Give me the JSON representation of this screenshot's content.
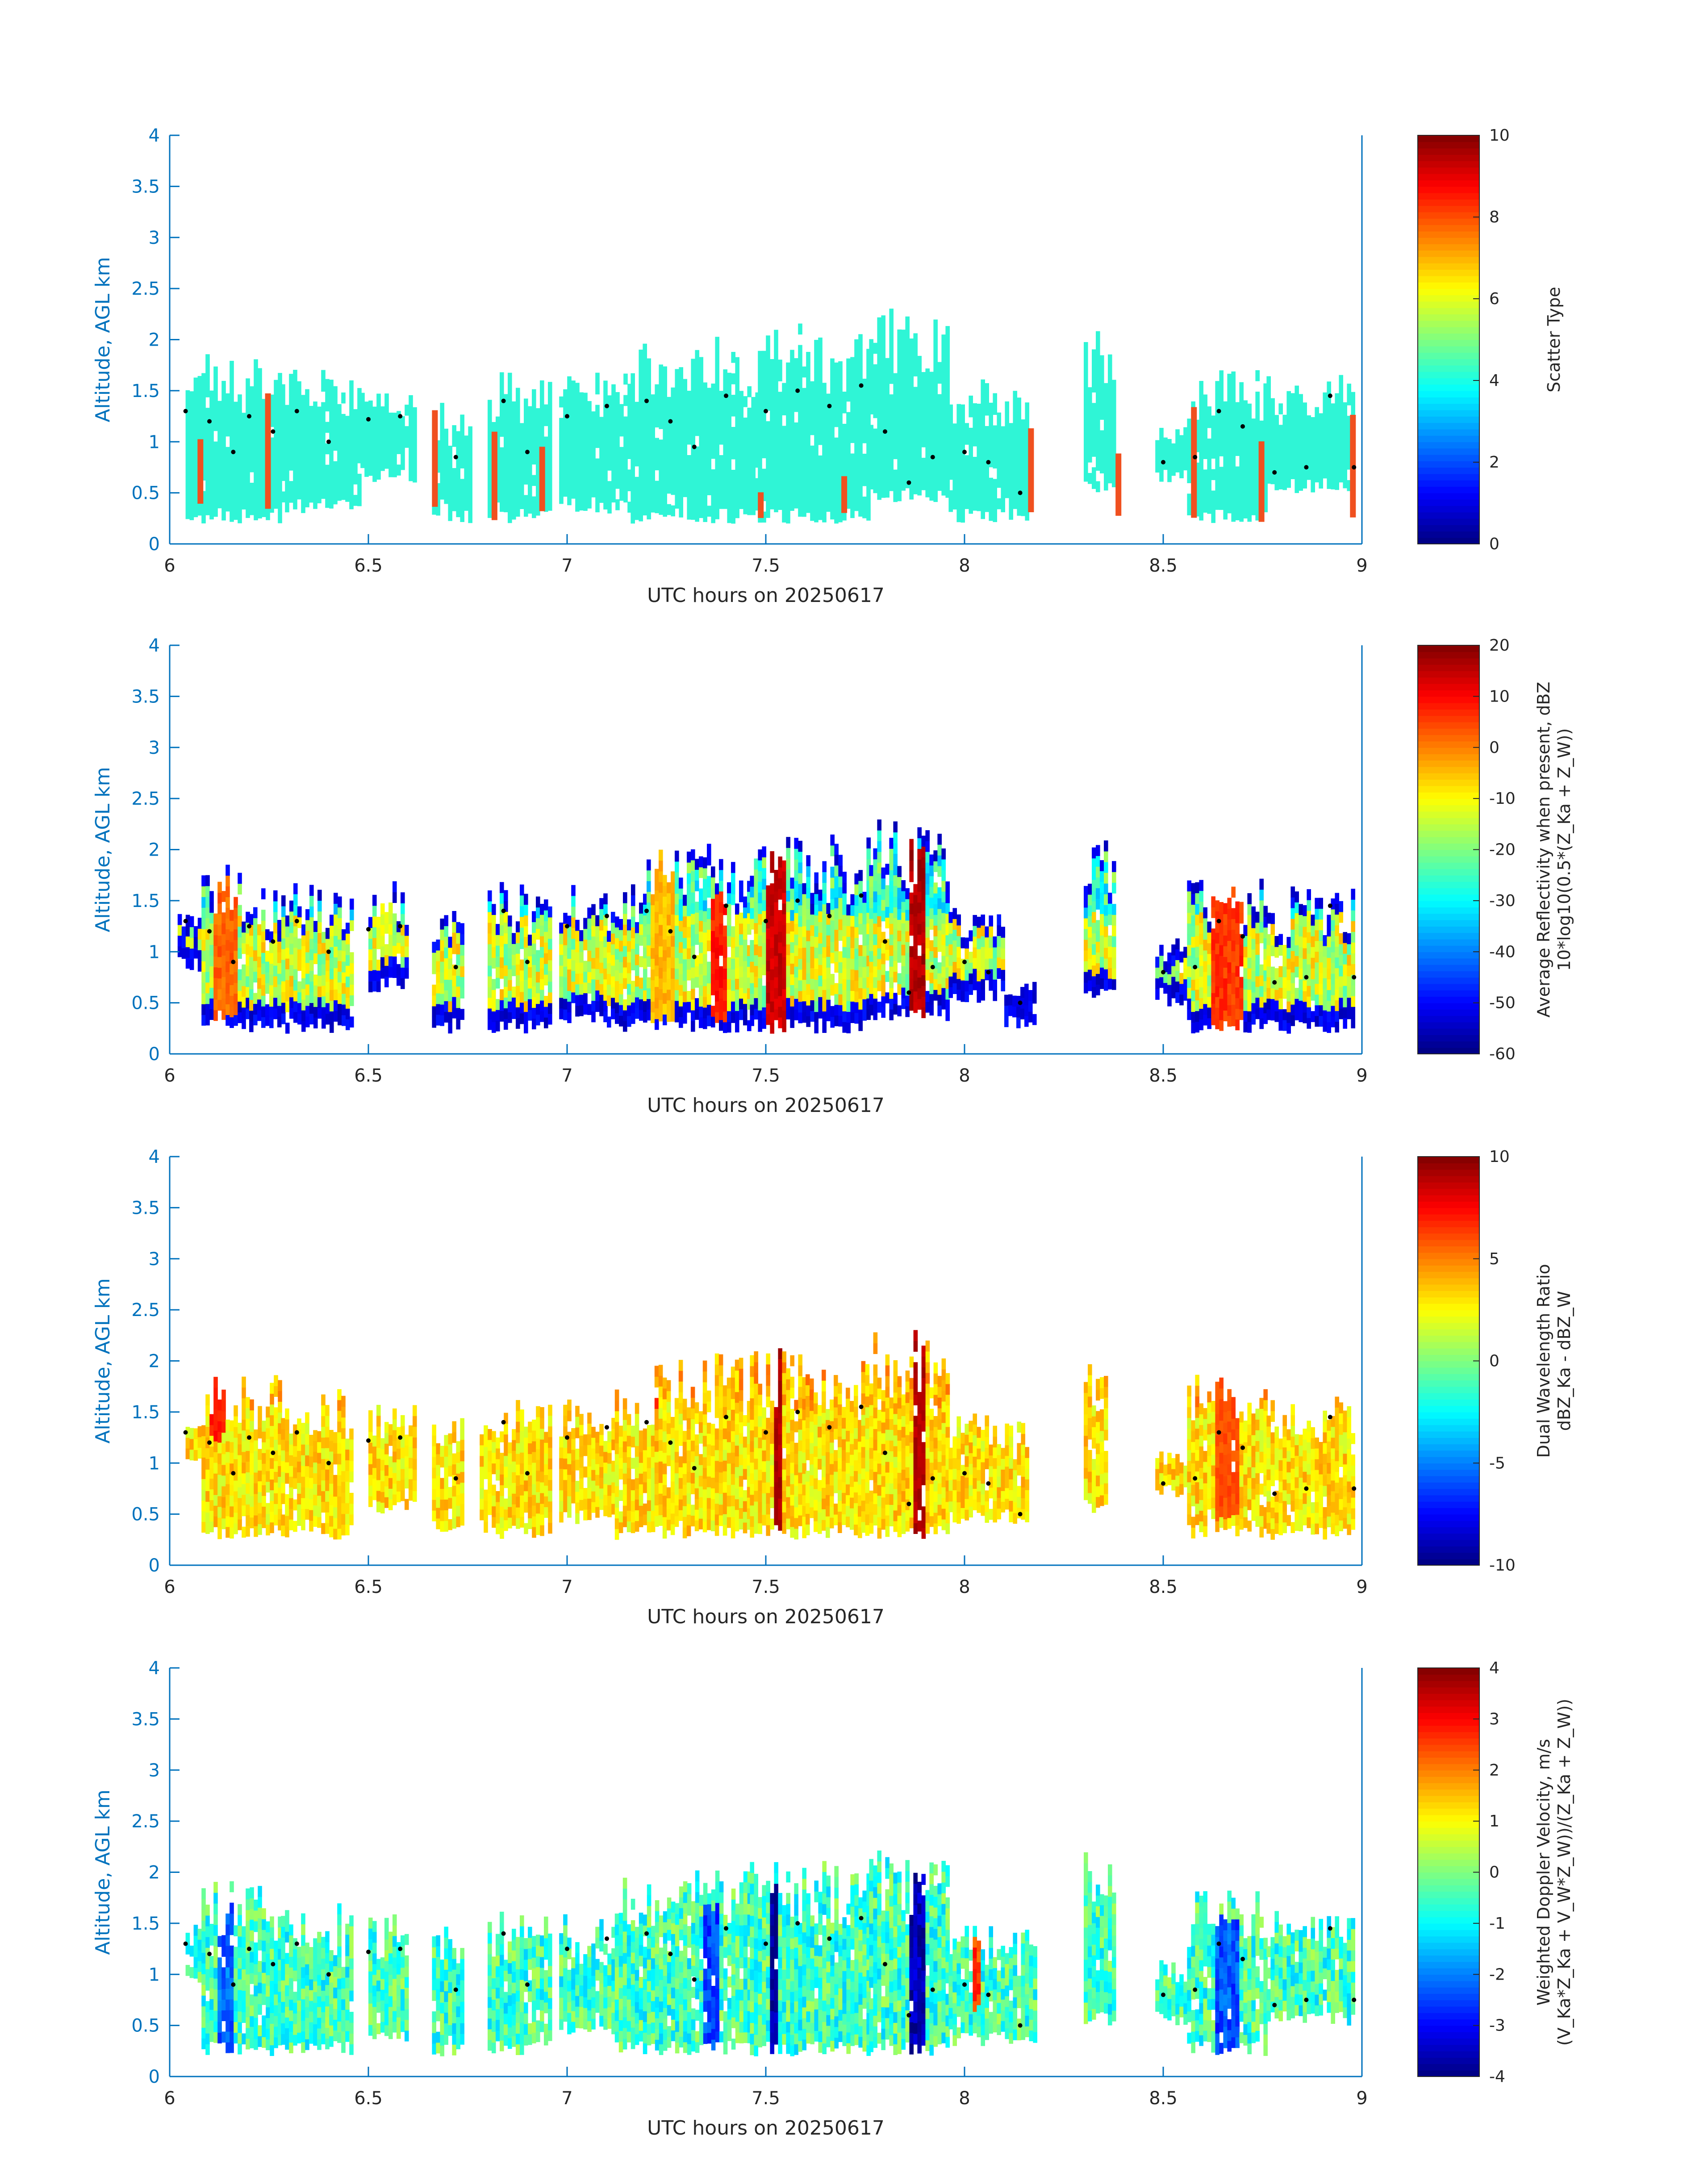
{
  "figure": {
    "xlabel": "UTC hours on 20250617",
    "ylabel": "Altitude, AGL km",
    "x_ticks": [
      "6",
      "6.5",
      "7",
      "7.5",
      "8",
      "8.5",
      "9"
    ],
    "y_ticks": [
      "0",
      "0.5",
      "1",
      "1.5",
      "2",
      "2.5",
      "3",
      "3.5",
      "4"
    ],
    "axis_color": "#0072bd",
    "tick_label_color": "#262626",
    "ylabel_color": "#0072bd"
  },
  "chart_data": [
    {
      "type": "heatmap",
      "variable": "scatter_type",
      "title": "",
      "xlabel": "UTC hours on 20250617",
      "ylabel": "Altitude, AGL km",
      "xlim": [
        6,
        9
      ],
      "ylim": [
        0,
        4
      ],
      "colorbar": {
        "label_lines": [
          "Scatter Type"
        ],
        "clim": [
          0,
          10
        ],
        "ticks": [
          "0",
          "2",
          "4",
          "6",
          "8",
          "10"
        ],
        "colormap": "jet"
      },
      "x_segments": [
        [
          6.04,
          6.08,
          0.2,
          1.8
        ],
        [
          6.08,
          6.28,
          0.2,
          1.85
        ],
        [
          6.28,
          6.48,
          0.3,
          1.65
        ],
        [
          6.48,
          6.62,
          0.6,
          1.5
        ],
        [
          6.66,
          6.76,
          0.2,
          1.3
        ],
        [
          6.8,
          6.96,
          0.2,
          1.6
        ],
        [
          6.98,
          7.16,
          0.3,
          1.65
        ],
        [
          7.16,
          7.48,
          0.2,
          2.0
        ],
        [
          7.48,
          7.76,
          0.2,
          2.1
        ],
        [
          7.76,
          7.96,
          0.4,
          2.25
        ],
        [
          7.96,
          8.16,
          0.2,
          1.6
        ],
        [
          8.3,
          8.38,
          0.5,
          2.05
        ],
        [
          8.48,
          8.56,
          0.6,
          1.1
        ],
        [
          8.56,
          8.76,
          0.2,
          1.7
        ],
        [
          8.76,
          8.98,
          0.5,
          1.6
        ]
      ],
      "value_levels": [
        {
          "value": 3.5,
          "color": "#2ff5d6"
        },
        {
          "value": 8.2,
          "color": "#f0501f"
        }
      ],
      "red_columns_x": [
        6.07,
        6.24,
        6.66,
        6.81,
        6.93,
        7.48,
        7.69,
        8.16,
        8.38,
        8.57,
        8.74,
        8.97
      ],
      "layer_marks": [
        {
          "t": 6.04,
          "h": 1.3
        },
        {
          "t": 6.1,
          "h": 1.2
        },
        {
          "t": 6.16,
          "h": 0.9
        },
        {
          "t": 6.2,
          "h": 1.25
        },
        {
          "t": 6.26,
          "h": 1.1
        },
        {
          "t": 6.32,
          "h": 1.3
        },
        {
          "t": 6.4,
          "h": 1.0
        },
        {
          "t": 6.5,
          "h": 1.22
        },
        {
          "t": 6.58,
          "h": 1.25
        },
        {
          "t": 6.72,
          "h": 0.85
        },
        {
          "t": 6.84,
          "h": 1.4
        },
        {
          "t": 6.9,
          "h": 0.9
        },
        {
          "t": 7.0,
          "h": 1.25
        },
        {
          "t": 7.1,
          "h": 1.35
        },
        {
          "t": 7.2,
          "h": 1.4
        },
        {
          "t": 7.26,
          "h": 1.2
        },
        {
          "t": 7.32,
          "h": 0.95
        },
        {
          "t": 7.4,
          "h": 1.45
        },
        {
          "t": 7.5,
          "h": 1.3
        },
        {
          "t": 7.58,
          "h": 1.5
        },
        {
          "t": 7.66,
          "h": 1.35
        },
        {
          "t": 7.74,
          "h": 1.55
        },
        {
          "t": 7.8,
          "h": 1.1
        },
        {
          "t": 7.86,
          "h": 0.6
        },
        {
          "t": 7.92,
          "h": 0.85
        },
        {
          "t": 8.0,
          "h": 0.9
        },
        {
          "t": 8.06,
          "h": 0.8
        },
        {
          "t": 8.14,
          "h": 0.5
        },
        {
          "t": 8.5,
          "h": 0.8
        },
        {
          "t": 8.58,
          "h": 0.85
        },
        {
          "t": 8.64,
          "h": 1.3
        },
        {
          "t": 8.7,
          "h": 1.15
        },
        {
          "t": 8.78,
          "h": 0.7
        },
        {
          "t": 8.86,
          "h": 0.75
        },
        {
          "t": 8.92,
          "h": 1.45
        },
        {
          "t": 8.98,
          "h": 0.75
        }
      ]
    },
    {
      "type": "heatmap",
      "variable": "average_reflectivity",
      "title": "",
      "xlabel": "UTC hours on 20250617",
      "ylabel": "Altitude, AGL km",
      "xlim": [
        6,
        9
      ],
      "ylim": [
        0,
        4
      ],
      "colorbar": {
        "label_lines": [
          "Average Reflectivity when present, dBZ",
          "10*log10(0.5*(Z_Ka + Z_W))"
        ],
        "clim": [
          -60,
          20
        ],
        "ticks": [
          "-60",
          "-50",
          "-40",
          "-30",
          "-20",
          "-10",
          "0",
          "10",
          "20"
        ],
        "colormap": "jet"
      },
      "x_segments": [
        [
          6.02,
          6.08,
          0.8,
          1.4
        ],
        [
          6.08,
          6.2,
          0.2,
          1.85
        ],
        [
          6.2,
          6.46,
          0.2,
          1.65
        ],
        [
          6.5,
          6.6,
          0.6,
          1.6
        ],
        [
          6.66,
          6.74,
          0.2,
          1.5
        ],
        [
          6.8,
          6.96,
          0.2,
          1.6
        ],
        [
          6.98,
          7.1,
          0.3,
          1.6
        ],
        [
          7.1,
          7.2,
          0.2,
          1.65
        ],
        [
          7.2,
          7.46,
          0.2,
          2.0
        ],
        [
          7.46,
          7.76,
          0.2,
          2.1
        ],
        [
          7.76,
          7.96,
          0.3,
          2.25
        ],
        [
          7.96,
          8.1,
          0.5,
          1.4
        ],
        [
          8.1,
          8.18,
          0.25,
          0.7
        ],
        [
          8.3,
          8.38,
          0.5,
          2.1
        ],
        [
          8.48,
          8.56,
          0.4,
          1.1
        ],
        [
          8.56,
          8.76,
          0.2,
          1.7
        ],
        [
          8.76,
          8.98,
          0.2,
          1.6
        ]
      ],
      "core_columns": [
        {
          "t": 6.14,
          "width": 0.06,
          "value": 2,
          "h0": 0.3,
          "h1": 1.7
        },
        {
          "t": 6.54,
          "width": 0.04,
          "value": -12,
          "h0": 0.9,
          "h1": 1.5
        },
        {
          "t": 7.24,
          "width": 0.06,
          "value": -5,
          "h0": 0.3,
          "h1": 1.9
        },
        {
          "t": 7.38,
          "width": 0.04,
          "value": 8,
          "h0": 0.3,
          "h1": 1.5
        },
        {
          "t": 7.52,
          "width": 0.05,
          "value": 14,
          "h0": 0.2,
          "h1": 1.9
        },
        {
          "t": 7.88,
          "width": 0.04,
          "value": 16,
          "h0": 0.3,
          "h1": 2.0
        },
        {
          "t": 8.66,
          "width": 0.08,
          "value": 6,
          "h0": 0.2,
          "h1": 1.6
        }
      ],
      "layer_marks": "same as panel 1"
    },
    {
      "type": "heatmap",
      "variable": "dual_wavelength_ratio",
      "title": "",
      "xlabel": "UTC hours on 20250617",
      "ylabel": "Altitude, AGL km",
      "xlim": [
        6,
        9
      ],
      "ylim": [
        0,
        4
      ],
      "colorbar": {
        "label_lines": [
          "Dual Wavelength Ratio",
          "dBZ_Ka - dBZ_W"
        ],
        "clim": [
          -10,
          10
        ],
        "ticks": [
          "-10",
          "-5",
          "0",
          "5",
          "10"
        ],
        "colormap": "jet"
      },
      "x_segments": [
        [
          6.04,
          6.08,
          0.9,
          1.4
        ],
        [
          6.08,
          6.28,
          0.25,
          1.85
        ],
        [
          6.28,
          6.46,
          0.25,
          1.65
        ],
        [
          6.5,
          6.62,
          0.5,
          1.55
        ],
        [
          6.66,
          6.74,
          0.3,
          1.4
        ],
        [
          6.78,
          6.96,
          0.25,
          1.6
        ],
        [
          6.98,
          7.12,
          0.4,
          1.55
        ],
        [
          7.12,
          7.22,
          0.25,
          1.7
        ],
        [
          7.22,
          7.46,
          0.25,
          2.0
        ],
        [
          7.46,
          7.6,
          0.25,
          2.1
        ],
        [
          7.6,
          7.74,
          0.25,
          1.9
        ],
        [
          7.74,
          7.96,
          0.25,
          2.25
        ],
        [
          7.96,
          8.16,
          0.4,
          1.45
        ],
        [
          8.3,
          8.36,
          0.5,
          2.1
        ],
        [
          8.48,
          8.56,
          0.65,
          1.05
        ],
        [
          8.56,
          8.76,
          0.25,
          1.8
        ],
        [
          8.76,
          8.98,
          0.25,
          1.6
        ]
      ],
      "core_columns": [
        {
          "t": 6.12,
          "width": 0.04,
          "value": 7,
          "h0": 1.2,
          "h1": 1.85
        },
        {
          "t": 7.2,
          "width": 0.06,
          "value": 7,
          "h0": 1.5,
          "h1": 1.7
        },
        {
          "t": 7.53,
          "width": 0.02,
          "value": 9,
          "h0": 0.25,
          "h1": 2.1
        },
        {
          "t": 7.88,
          "width": 0.03,
          "value": 9,
          "h0": 0.25,
          "h1": 2.25
        },
        {
          "t": 8.66,
          "width": 0.06,
          "value": 6,
          "h0": 0.4,
          "h1": 1.8
        }
      ],
      "layer_marks": "same as panel 1"
    },
    {
      "type": "heatmap",
      "variable": "weighted_doppler_velocity",
      "title": "",
      "xlabel": "UTC hours on 20250617",
      "ylabel": "Altitude, AGL km",
      "xlim": [
        6,
        9
      ],
      "ylim": [
        0,
        4
      ],
      "colorbar": {
        "label_lines": [
          "Weighted Doppler Velocity, m/s",
          "(V_Ka*Z_Ka + V_W*Z_W))/(Z_Ka + Z_W))"
        ],
        "clim": [
          -4,
          4
        ],
        "ticks": [
          "-4",
          "-3",
          "-2",
          "-1",
          "0",
          "1",
          "2",
          "3",
          "4"
        ],
        "colormap": "jet"
      },
      "x_segments": [
        [
          6.04,
          6.08,
          0.9,
          1.4
        ],
        [
          6.08,
          6.28,
          0.2,
          1.9
        ],
        [
          6.28,
          6.46,
          0.2,
          1.65
        ],
        [
          6.5,
          6.6,
          0.3,
          1.55
        ],
        [
          6.66,
          6.74,
          0.2,
          1.45
        ],
        [
          6.8,
          6.96,
          0.2,
          1.6
        ],
        [
          6.98,
          7.12,
          0.4,
          1.55
        ],
        [
          7.12,
          7.46,
          0.2,
          2.0
        ],
        [
          7.46,
          7.76,
          0.2,
          2.1
        ],
        [
          7.76,
          7.96,
          0.2,
          2.25
        ],
        [
          7.96,
          8.18,
          0.3,
          1.45
        ],
        [
          8.3,
          8.38,
          0.5,
          2.1
        ],
        [
          8.48,
          8.56,
          0.5,
          1.1
        ],
        [
          8.56,
          8.76,
          0.2,
          1.8
        ],
        [
          8.76,
          8.98,
          0.5,
          1.6
        ]
      ],
      "core_columns": [
        {
          "t": 6.14,
          "width": 0.04,
          "value": -2.2,
          "h0": 0.2,
          "h1": 1.6
        },
        {
          "t": 7.36,
          "width": 0.04,
          "value": -2.5,
          "h0": 0.2,
          "h1": 1.6
        },
        {
          "t": 7.52,
          "width": 0.02,
          "value": -3.8,
          "h0": 0.2,
          "h1": 1.8
        },
        {
          "t": 7.88,
          "width": 0.04,
          "value": -3.6,
          "h0": 0.2,
          "h1": 2.1
        },
        {
          "t": 8.03,
          "width": 0.02,
          "value": 2.5,
          "h0": 0.6,
          "h1": 1.35
        },
        {
          "t": 8.66,
          "width": 0.06,
          "value": -2.4,
          "h0": 0.2,
          "h1": 1.5
        }
      ],
      "layer_marks": "same as panel 1"
    }
  ]
}
